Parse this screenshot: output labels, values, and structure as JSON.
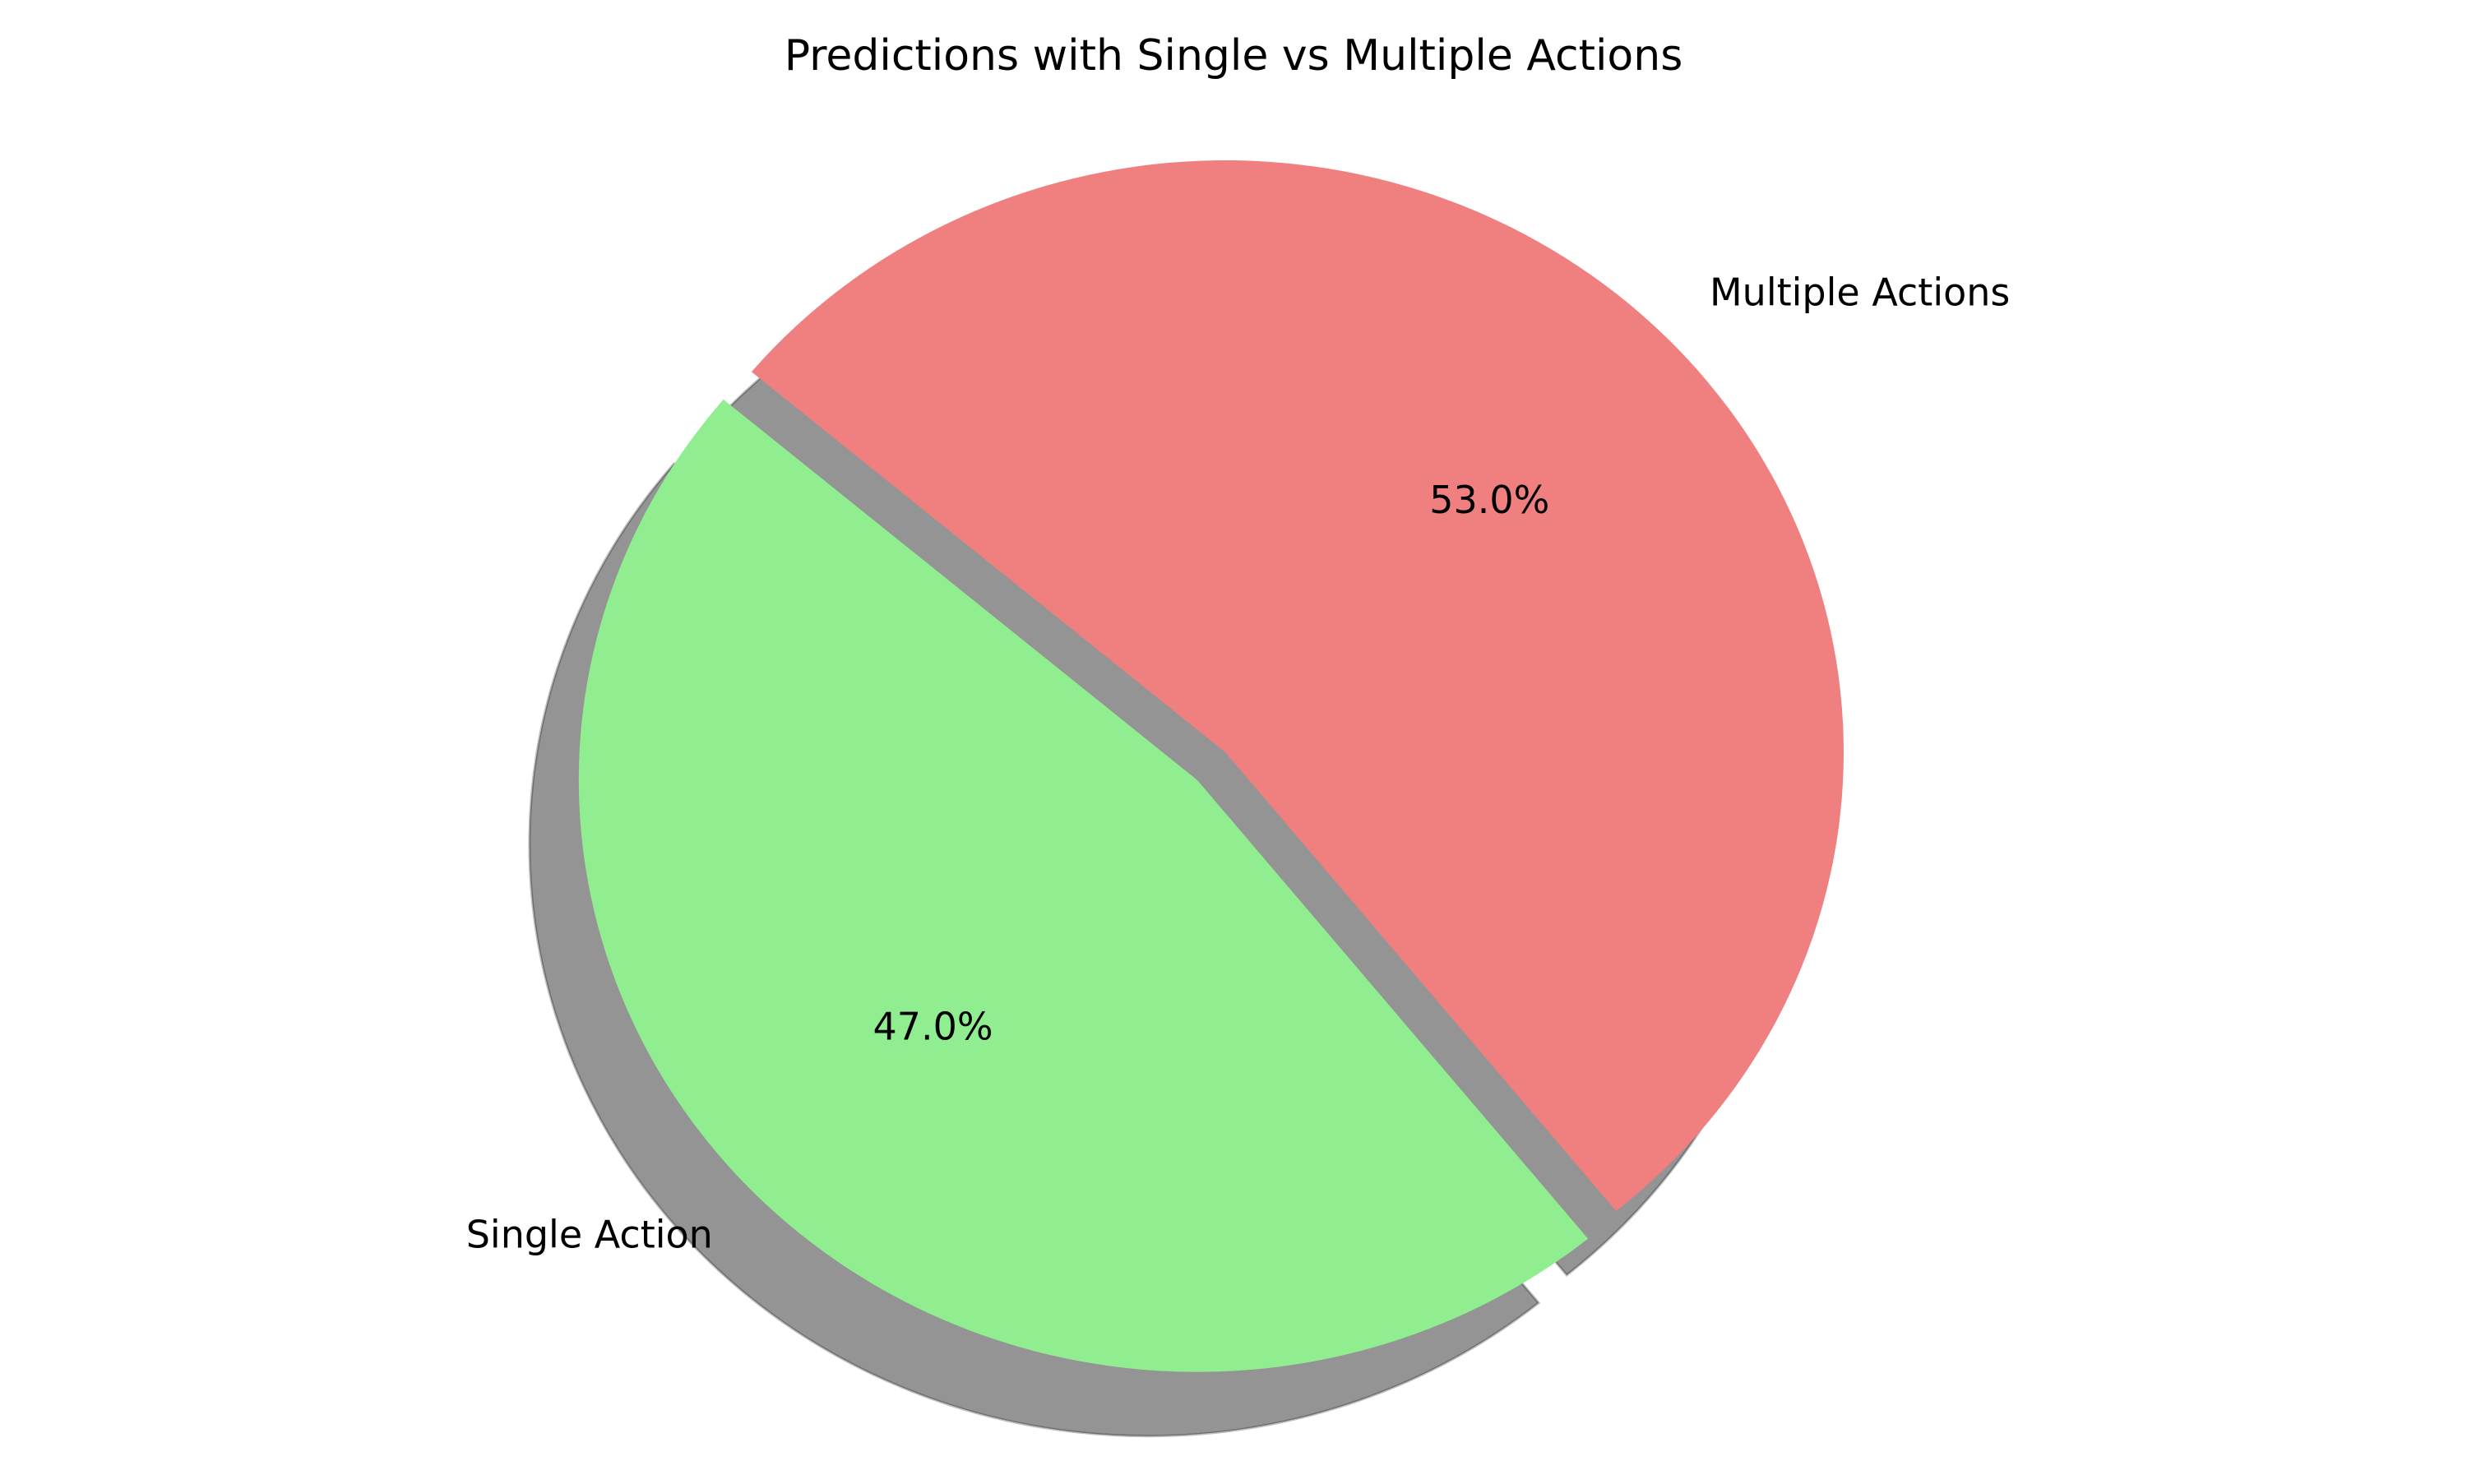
{
  "chart_data": {
    "type": "pie",
    "title": "Predictions with Single vs Multiple Actions",
    "labels": [
      "Single Action",
      "Multiple Actions"
    ],
    "values": [
      47.0,
      53.0
    ],
    "percent_labels": [
      "47.0%",
      "53.0%"
    ],
    "colors": [
      "#90ee90",
      "#f08080"
    ],
    "exploded_slice": "Single Action",
    "shadow": true,
    "start_angle_deg": 140
  }
}
